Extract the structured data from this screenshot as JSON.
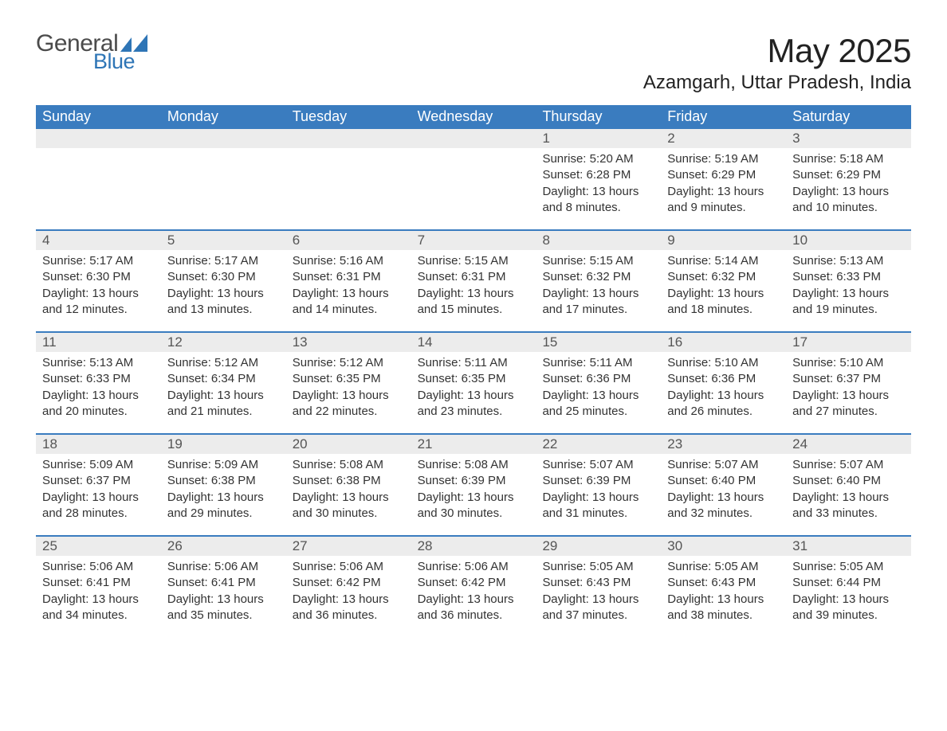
{
  "logo": {
    "text_general": "General",
    "text_blue": "Blue",
    "icon_color": "#2e75b6"
  },
  "title": "May 2025",
  "location": "Azamgarh, Uttar Pradesh, India",
  "colors": {
    "header_bg": "#3a7cbf",
    "header_text": "#ffffff",
    "daynum_bg": "#ececec",
    "daynum_text": "#555555",
    "body_text": "#333333",
    "row_divider": "#3a7cbf",
    "page_bg": "#ffffff"
  },
  "day_names": [
    "Sunday",
    "Monday",
    "Tuesday",
    "Wednesday",
    "Thursday",
    "Friday",
    "Saturday"
  ],
  "labels": {
    "sunrise": "Sunrise:",
    "sunset": "Sunset:",
    "daylight": "Daylight:"
  },
  "weeks": [
    [
      {
        "empty": true
      },
      {
        "empty": true
      },
      {
        "empty": true
      },
      {
        "empty": true
      },
      {
        "day": "1",
        "sunrise": "5:20 AM",
        "sunset": "6:28 PM",
        "daylight": "13 hours and 8 minutes."
      },
      {
        "day": "2",
        "sunrise": "5:19 AM",
        "sunset": "6:29 PM",
        "daylight": "13 hours and 9 minutes."
      },
      {
        "day": "3",
        "sunrise": "5:18 AM",
        "sunset": "6:29 PM",
        "daylight": "13 hours and 10 minutes."
      }
    ],
    [
      {
        "day": "4",
        "sunrise": "5:17 AM",
        "sunset": "6:30 PM",
        "daylight": "13 hours and 12 minutes."
      },
      {
        "day": "5",
        "sunrise": "5:17 AM",
        "sunset": "6:30 PM",
        "daylight": "13 hours and 13 minutes."
      },
      {
        "day": "6",
        "sunrise": "5:16 AM",
        "sunset": "6:31 PM",
        "daylight": "13 hours and 14 minutes."
      },
      {
        "day": "7",
        "sunrise": "5:15 AM",
        "sunset": "6:31 PM",
        "daylight": "13 hours and 15 minutes."
      },
      {
        "day": "8",
        "sunrise": "5:15 AM",
        "sunset": "6:32 PM",
        "daylight": "13 hours and 17 minutes."
      },
      {
        "day": "9",
        "sunrise": "5:14 AM",
        "sunset": "6:32 PM",
        "daylight": "13 hours and 18 minutes."
      },
      {
        "day": "10",
        "sunrise": "5:13 AM",
        "sunset": "6:33 PM",
        "daylight": "13 hours and 19 minutes."
      }
    ],
    [
      {
        "day": "11",
        "sunrise": "5:13 AM",
        "sunset": "6:33 PM",
        "daylight": "13 hours and 20 minutes."
      },
      {
        "day": "12",
        "sunrise": "5:12 AM",
        "sunset": "6:34 PM",
        "daylight": "13 hours and 21 minutes."
      },
      {
        "day": "13",
        "sunrise": "5:12 AM",
        "sunset": "6:35 PM",
        "daylight": "13 hours and 22 minutes."
      },
      {
        "day": "14",
        "sunrise": "5:11 AM",
        "sunset": "6:35 PM",
        "daylight": "13 hours and 23 minutes."
      },
      {
        "day": "15",
        "sunrise": "5:11 AM",
        "sunset": "6:36 PM",
        "daylight": "13 hours and 25 minutes."
      },
      {
        "day": "16",
        "sunrise": "5:10 AM",
        "sunset": "6:36 PM",
        "daylight": "13 hours and 26 minutes."
      },
      {
        "day": "17",
        "sunrise": "5:10 AM",
        "sunset": "6:37 PM",
        "daylight": "13 hours and 27 minutes."
      }
    ],
    [
      {
        "day": "18",
        "sunrise": "5:09 AM",
        "sunset": "6:37 PM",
        "daylight": "13 hours and 28 minutes."
      },
      {
        "day": "19",
        "sunrise": "5:09 AM",
        "sunset": "6:38 PM",
        "daylight": "13 hours and 29 minutes."
      },
      {
        "day": "20",
        "sunrise": "5:08 AM",
        "sunset": "6:38 PM",
        "daylight": "13 hours and 30 minutes."
      },
      {
        "day": "21",
        "sunrise": "5:08 AM",
        "sunset": "6:39 PM",
        "daylight": "13 hours and 30 minutes."
      },
      {
        "day": "22",
        "sunrise": "5:07 AM",
        "sunset": "6:39 PM",
        "daylight": "13 hours and 31 minutes."
      },
      {
        "day": "23",
        "sunrise": "5:07 AM",
        "sunset": "6:40 PM",
        "daylight": "13 hours and 32 minutes."
      },
      {
        "day": "24",
        "sunrise": "5:07 AM",
        "sunset": "6:40 PM",
        "daylight": "13 hours and 33 minutes."
      }
    ],
    [
      {
        "day": "25",
        "sunrise": "5:06 AM",
        "sunset": "6:41 PM",
        "daylight": "13 hours and 34 minutes."
      },
      {
        "day": "26",
        "sunrise": "5:06 AM",
        "sunset": "6:41 PM",
        "daylight": "13 hours and 35 minutes."
      },
      {
        "day": "27",
        "sunrise": "5:06 AM",
        "sunset": "6:42 PM",
        "daylight": "13 hours and 36 minutes."
      },
      {
        "day": "28",
        "sunrise": "5:06 AM",
        "sunset": "6:42 PM",
        "daylight": "13 hours and 36 minutes."
      },
      {
        "day": "29",
        "sunrise": "5:05 AM",
        "sunset": "6:43 PM",
        "daylight": "13 hours and 37 minutes."
      },
      {
        "day": "30",
        "sunrise": "5:05 AM",
        "sunset": "6:43 PM",
        "daylight": "13 hours and 38 minutes."
      },
      {
        "day": "31",
        "sunrise": "5:05 AM",
        "sunset": "6:44 PM",
        "daylight": "13 hours and 39 minutes."
      }
    ]
  ]
}
